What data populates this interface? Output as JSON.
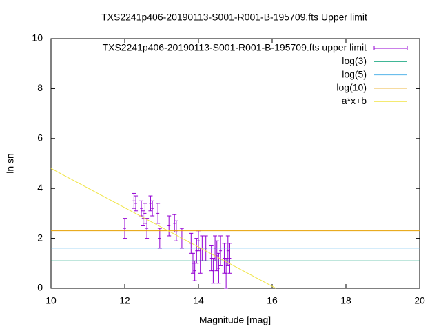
{
  "chart_data": {
    "type": "errorbar",
    "title": "TXS2241p406-20190113-S001-R001-B-195709.fts Upper limit",
    "xlabel": "Magnitude [mag]",
    "ylabel": "ln sn",
    "xlim": [
      10,
      20
    ],
    "xticks": [
      10,
      12,
      14,
      16,
      18,
      20
    ],
    "ylim": [
      0,
      10
    ],
    "yticks": [
      0,
      2,
      4,
      6,
      8,
      10
    ],
    "series": [
      {
        "name": "TXS2241p406-20190113-S001-R001-B-195709.fts upper limit",
        "color": "#9400d3",
        "kind": "errorbar",
        "x": [
          12.0,
          12.25,
          12.3,
          12.45,
          12.5,
          12.55,
          12.6,
          12.7,
          12.75,
          12.9,
          12.95,
          13.2,
          13.35,
          13.4,
          13.55,
          13.8,
          13.85,
          13.9,
          13.95,
          14.0,
          14.05,
          14.1,
          14.2,
          14.35,
          14.4,
          14.45,
          14.5,
          14.55,
          14.6,
          14.7,
          14.75,
          14.8,
          14.85
        ],
        "values": [
          2.4,
          3.5,
          3.4,
          3.2,
          2.8,
          3.0,
          2.4,
          3.4,
          3.2,
          3.0,
          2.0,
          2.5,
          2.6,
          2.3,
          2.0,
          1.8,
          1.0,
          0.7,
          1.5,
          1.9,
          1.1,
          1.6,
          1.6,
          1.2,
          0.7,
          1.6,
          1.3,
          0.8,
          1.5,
          1.2,
          0.6,
          1.5,
          1.2
        ],
        "errors": [
          0.4,
          0.3,
          0.3,
          0.3,
          0.3,
          0.4,
          0.4,
          0.3,
          0.3,
          0.4,
          0.4,
          0.4,
          0.35,
          0.4,
          0.4,
          0.4,
          0.4,
          0.4,
          0.5,
          0.4,
          0.5,
          0.5,
          0.5,
          0.5,
          0.5,
          0.5,
          0.6,
          0.6,
          0.6,
          0.6,
          0.6,
          0.6,
          0.6
        ]
      },
      {
        "name": "log(3)",
        "color": "#009e73",
        "kind": "line",
        "x": [
          10,
          20
        ],
        "values": [
          1.0986,
          1.0986
        ]
      },
      {
        "name": "log(5)",
        "color": "#56b4e9",
        "kind": "line",
        "x": [
          10,
          20
        ],
        "values": [
          1.6094,
          1.6094
        ]
      },
      {
        "name": "log(10)",
        "color": "#e69f00",
        "kind": "line",
        "x": [
          10,
          20
        ],
        "values": [
          2.3026,
          2.3026
        ]
      },
      {
        "name": "a*x+b",
        "color": "#f0e442",
        "kind": "line",
        "x": [
          10,
          16.1
        ],
        "values": [
          4.8,
          0
        ]
      }
    ]
  }
}
